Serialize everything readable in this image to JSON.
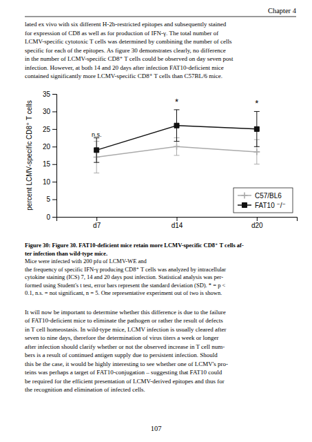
{
  "chart_data": {
    "type": "line",
    "categories": [
      "d7",
      "d14",
      "d20"
    ],
    "series": [
      {
        "name": "C57/BL6",
        "color": "#aaaaaa",
        "marker": "plus",
        "values": [
          17.0,
          20.0,
          18.5
        ],
        "errors": [
          4.5,
          2.5,
          3.5
        ]
      },
      {
        "name": "FAT10 ⁻/⁻",
        "color": "#111111",
        "marker": "square",
        "values": [
          19.0,
          26.0,
          25.0
        ],
        "errors": [
          3.5,
          4.5,
          5.0
        ]
      }
    ],
    "y_label": "percent LCMV-specific CD8⁺ T cells",
    "ylim": [
      0,
      35
    ],
    "yticks": [
      0,
      5,
      10,
      15,
      20,
      25,
      30,
      35
    ],
    "annotations": [
      {
        "x": 0,
        "y": 22.5,
        "text": "n.s."
      },
      {
        "x": 1,
        "y": 31.5,
        "text": "*"
      },
      {
        "x": 2,
        "y": 31.0,
        "text": "*"
      }
    ],
    "legend": "lower right",
    "grid": false
  },
  "page": {
    "header": "Chapter 4",
    "top_text": [
      "lated ex vivo with six different H-2b-restricted epitopes and subsequently stained",
      "for expression of CD8 as well as for production of IFN-γ.  The total number of",
      "LCMV-specific cytotoxic T cells was determined by combining the number of cells",
      "specific for each of the epitopes.  As figure 30 demonstrates clearly, no difference",
      "in the number of LCMV-specific CD8⁺ T cells could be observed on day seven post",
      "infection.  However, at both 14 and 20 days after infection FAT10-deficient mice",
      "contained significantly more LCMV-specific CD8⁺ T cells than C57BL/6 mice."
    ],
    "caption_bold": [
      "Figure 30: Figure 30. FAT10-deficient mice retain more LCMV-specific CD8⁺ T cells af-",
      "ter infection than wild-type mice."
    ],
    "caption": [
      "Mice were infected with 200 pfu of LCMV-WE and",
      "the frequency of specific IFN-γ producing CD8⁺ T cells was analyzed by intracellular",
      "cytokine staining (ICS) 7, 14 and 20 days post infection.  Statistical analysis was per-",
      "formed using Student's t test, error bars represent the standard deviation (SD). * = p <",
      "0.1, n.s. = not significant, n = 5. One representative experiment out of two is shown."
    ],
    "body_text": [
      "It will now be important to determine whether this difference is due to the failure",
      "of FAT10-deficient mice to eliminate the pathogen or rather the result of defects",
      "in T cell homeostasis. In wild-type mice, LCMV infection is usually cleared after",
      "seven to nine days, therefore the determination of virus titers a week or longer",
      "after infection should clarify whether or not the observed increase in T cell num-",
      "bers is a result of continued antigen supply due to persistent infection.  Should",
      "this be the case, it would be highly interesting to see whether one of LCMV's pro-",
      "teins was perhaps a target of FAT10-conjugation – suggesting that FAT10 could",
      "be required for the efficient presentation of LCMV-derived epitopes and thus for",
      "the recognition and elimination of infected cells."
    ],
    "page_number": "107"
  }
}
